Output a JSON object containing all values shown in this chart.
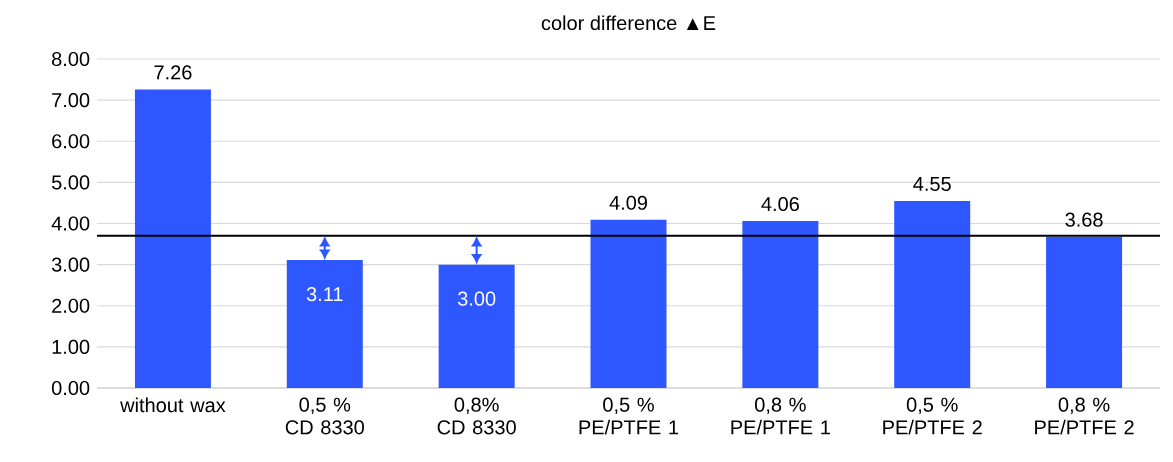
{
  "chart_data": {
    "type": "bar",
    "title": "color difference ▲E",
    "categories": [
      "without wax",
      "0,5 % CD 8330",
      "0,8% CD 8330",
      "0,5 % PE/PTFE 1",
      "0,8 % PE/PTFE 1",
      "0,5 % PE/PTFE 2",
      "0,8 % PE/PTFE 2"
    ],
    "values": [
      7.26,
      3.11,
      3.0,
      4.09,
      4.06,
      4.55,
      3.68
    ],
    "value_labels": [
      "7.26",
      "3.11",
      "3.00",
      "4.09",
      "4.06",
      "4.55",
      "3.68"
    ],
    "color": "#2f57ff",
    "ylim": [
      0,
      8
    ],
    "yticks": [
      {
        "value": 0,
        "label": "0.00"
      },
      {
        "value": 1,
        "label": "1.00"
      },
      {
        "value": 2,
        "label": "2.00"
      },
      {
        "value": 3,
        "label": "3.00"
      },
      {
        "value": 4,
        "label": "4.00"
      },
      {
        "value": 5,
        "label": "5.00"
      },
      {
        "value": 6,
        "label": "6.00"
      },
      {
        "value": 7,
        "label": "7.00"
      },
      {
        "value": 8,
        "label": "8.00"
      }
    ],
    "grid": "y",
    "ref_lines": [
      {
        "axis": "y",
        "value": 3.7,
        "color": "#000000"
      }
    ]
  }
}
